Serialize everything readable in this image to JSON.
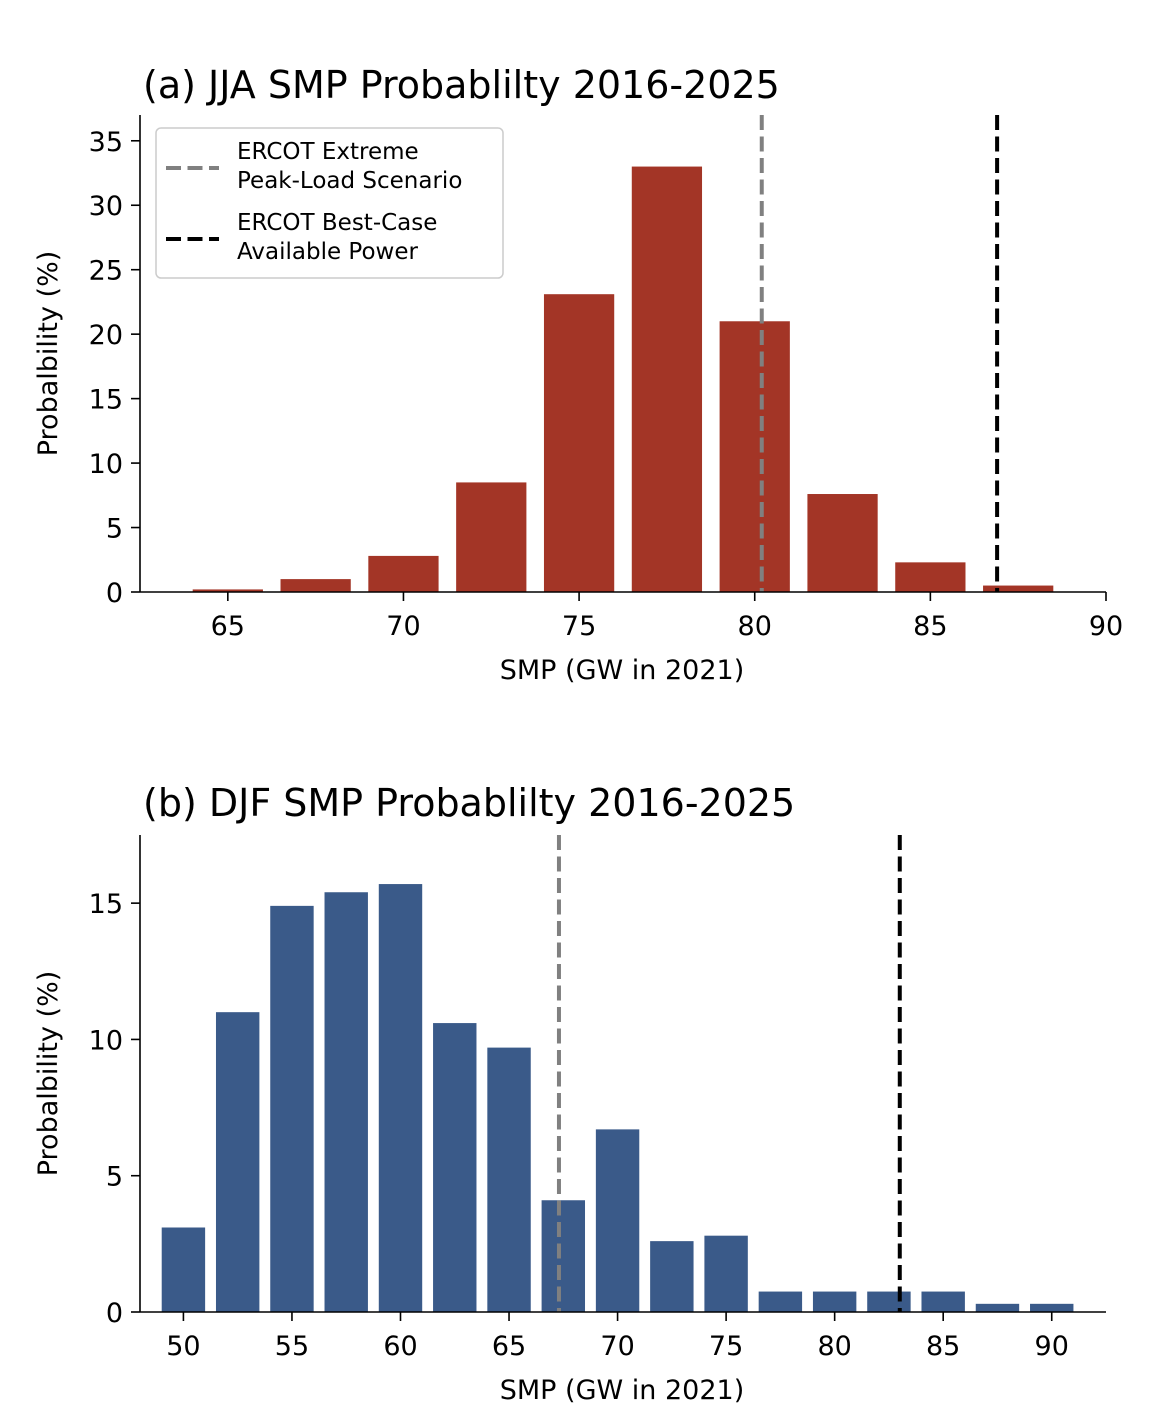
{
  "chart_data": [
    {
      "type": "bar",
      "title": "(a) JJA SMP Probablilty 2016-2025",
      "xlabel": "SMP (GW in 2021)",
      "ylabel": "Probalbility (%)",
      "x": [
        65,
        67.5,
        70,
        72.5,
        75,
        77.5,
        80,
        82.5,
        85,
        87.5
      ],
      "values": [
        0.2,
        1.0,
        2.8,
        8.5,
        23.1,
        33.0,
        21.0,
        7.6,
        2.3,
        0.5
      ],
      "bar_width": 2.0,
      "xlim": [
        62.5,
        90
      ],
      "ylim": [
        0,
        37
      ],
      "xticks": [
        65,
        70,
        75,
        80,
        85,
        90
      ],
      "yticks": [
        0,
        5,
        10,
        15,
        20,
        25,
        30,
        35
      ],
      "color": "#a33526",
      "reference_lines": [
        {
          "x": 80.2,
          "color": "#808080",
          "label": "ERCOT Extreme\nPeak-Load Scenario"
        },
        {
          "x": 86.9,
          "color": "#000000",
          "label": "ERCOT Best-Case\nAvailable Power"
        }
      ],
      "legend": "top-left",
      "grid": false
    },
    {
      "type": "bar",
      "title": "(b) DJF SMP Probablilty 2016-2025",
      "xlabel": "SMP (GW in 2021)",
      "ylabel": "Probalbility (%)",
      "x": [
        50,
        52.5,
        55,
        57.5,
        60,
        62.5,
        65,
        67.5,
        70,
        72.5,
        75,
        77.5,
        80,
        82.5,
        85,
        87.5,
        90
      ],
      "values": [
        3.1,
        11.0,
        14.9,
        15.4,
        15.7,
        10.6,
        9.7,
        4.1,
        6.7,
        2.6,
        2.8,
        0.75,
        0.75,
        0.75,
        0.75,
        0.3,
        0.3
      ],
      "bar_width": 2.0,
      "xlim": [
        48,
        92.5
      ],
      "ylim": [
        0,
        17.5
      ],
      "xticks": [
        50,
        55,
        60,
        65,
        70,
        75,
        80,
        85,
        90
      ],
      "yticks": [
        0,
        5,
        10,
        15
      ],
      "color": "#3a5a89",
      "reference_lines": [
        {
          "x": 67.3,
          "color": "#808080"
        },
        {
          "x": 83.0,
          "color": "#000000"
        }
      ],
      "grid": false
    }
  ]
}
